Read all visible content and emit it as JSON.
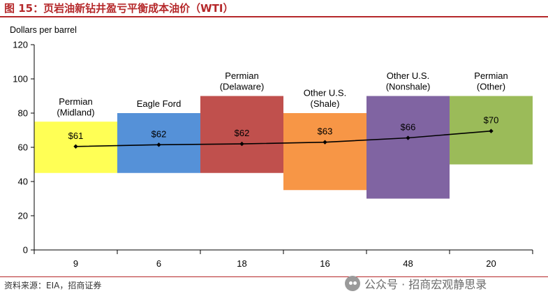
{
  "figure": {
    "title": "图 15：页岩油新钻井盈亏平衡成本油价（WTI）",
    "source": "资料来源：EIA，招商证券",
    "watermark": "公众号 · 招商宏观静思录"
  },
  "chart_data": {
    "type": "bar",
    "subtype": "variable-width floating range bars with line overlay",
    "ylabel": "Dollars per barrel",
    "ylim": [
      0,
      120
    ],
    "yticks": [
      0,
      20,
      40,
      60,
      80,
      100,
      120
    ],
    "grid": false,
    "legend": "none",
    "categories": [
      "Permian\n(Midland)",
      "Eagle Ford",
      "Permian\n(Delaware)",
      "Other U.S.\n(Shale)",
      "Other U.S.\n(Nonshale)",
      "Permian\n(Other)"
    ],
    "x_tick_labels": [
      "9",
      "6",
      "18",
      "16",
      "48",
      "20"
    ],
    "ranges": [
      {
        "low": 45,
        "high": 75,
        "color": "#ffff55"
      },
      {
        "low": 45,
        "high": 80,
        "color": "#5591d8"
      },
      {
        "low": 45,
        "high": 90,
        "color": "#c0504d"
      },
      {
        "low": 35,
        "high": 80,
        "color": "#f79646"
      },
      {
        "low": 30,
        "high": 90,
        "color": "#8064a2"
      },
      {
        "low": 50,
        "high": 90,
        "color": "#9bbb59"
      }
    ],
    "series": [
      {
        "values": [
          60.5,
          61.5,
          62,
          63,
          65.5,
          69.5
        ],
        "color": "#000000"
      }
    ],
    "data_labels": [
      "$61",
      "$62",
      "$62",
      "$63",
      "$66",
      "$70"
    ]
  }
}
